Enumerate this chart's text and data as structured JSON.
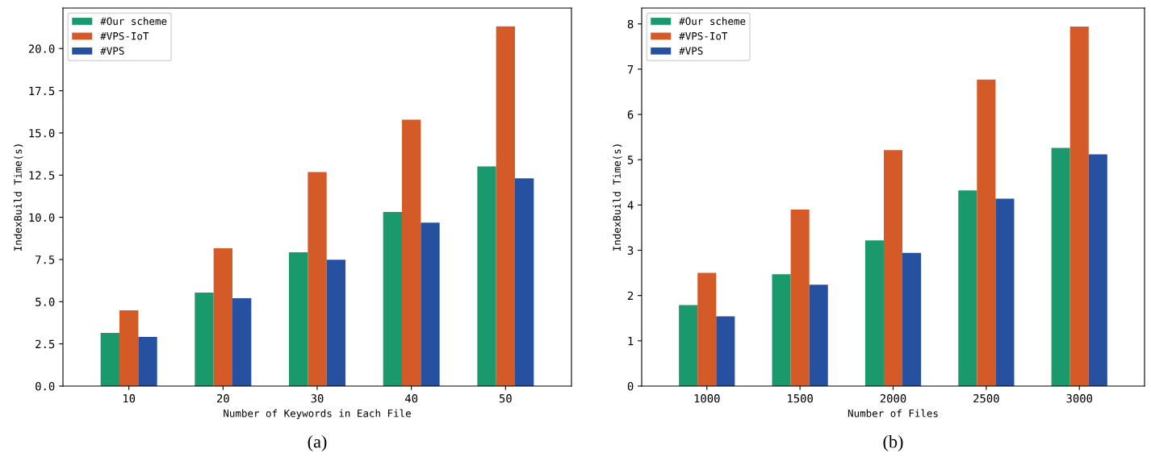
{
  "chart_data": [
    {
      "type": "bar",
      "xlabel": "Number of Keywords in Each File",
      "ylabel": "IndexBuild Time(s)",
      "categories": [
        "10",
        "20",
        "30",
        "40",
        "50"
      ],
      "series": [
        {
          "name": "#Our scheme",
          "color": "#1a9a6c",
          "values": [
            3.15,
            5.54,
            7.93,
            10.32,
            13.01
          ]
        },
        {
          "name": "#VPS-IoT",
          "color": "#d45a27",
          "values": [
            4.49,
            8.17,
            12.68,
            15.79,
            21.31
          ]
        },
        {
          "name": "#VPS",
          "color": "#2650a0",
          "values": [
            2.91,
            5.21,
            7.49,
            9.68,
            12.31
          ]
        }
      ],
      "ylim": [
        0,
        22.4
      ],
      "yticks": [
        {
          "value": 0,
          "label": "0.0"
        },
        2.5,
        {
          "value": 5,
          "label": "5.0"
        },
        7.5,
        {
          "value": 10,
          "label": "10.0"
        },
        12.5,
        {
          "value": 15,
          "label": "15.0"
        },
        17.5,
        {
          "value": 20,
          "label": "20.0"
        }
      ],
      "legend": "top left",
      "annotations": [
        "(a)"
      ]
    },
    {
      "type": "bar",
      "xlabel": "Number of Files",
      "ylabel": "IndexBuild Time(s)",
      "categories": [
        "1000",
        "1500",
        "2000",
        "2500",
        "3000"
      ],
      "series": [
        {
          "name": "#Our scheme",
          "color": "#1a9a6c",
          "values": [
            1.79,
            2.47,
            3.22,
            4.32,
            5.26
          ]
        },
        {
          "name": "#VPS-IoT",
          "color": "#d45a27",
          "values": [
            2.5,
            3.9,
            5.21,
            6.77,
            7.94
          ]
        },
        {
          "name": "#VPS",
          "color": "#2650a0",
          "values": [
            1.54,
            2.24,
            2.94,
            4.14,
            5.12
          ]
        }
      ],
      "ylim": [
        0,
        8.35
      ],
      "yticks": [
        0,
        1,
        2,
        3,
        4,
        5,
        6,
        7,
        8
      ],
      "legend": "top left",
      "annotations": [
        "(b)"
      ]
    }
  ]
}
